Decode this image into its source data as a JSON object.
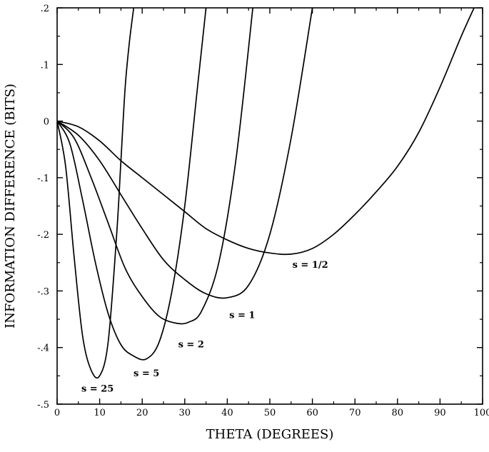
{
  "chart_data": {
    "type": "line",
    "xlabel": "THETA (DEGREES)",
    "ylabel": "INFORMATION DIFFERENCE (BITS)",
    "xlim": [
      0,
      100
    ],
    "ylim": [
      -0.5,
      0.2
    ],
    "grid": false,
    "x_ticks": [
      {
        "value": 0,
        "label": "0"
      },
      {
        "value": 10,
        "label": "10"
      },
      {
        "value": 20,
        "label": "20"
      },
      {
        "value": 30,
        "label": "30"
      },
      {
        "value": 40,
        "label": "40"
      },
      {
        "value": 50,
        "label": "50"
      },
      {
        "value": 60,
        "label": "60"
      },
      {
        "value": 70,
        "label": "70"
      },
      {
        "value": 80,
        "label": "80"
      },
      {
        "value": 90,
        "label": "90"
      },
      {
        "value": 100,
        "label": "100"
      }
    ],
    "y_ticks": [
      {
        "value": 0.2,
        "label": ".2"
      },
      {
        "value": 0.1,
        "label": ".1"
      },
      {
        "value": 0,
        "label": "0"
      },
      {
        "value": -0.1,
        "label": "-.1"
      },
      {
        "value": -0.2,
        "label": "-.2"
      },
      {
        "value": -0.3,
        "label": "-.3"
      },
      {
        "value": -0.4,
        "label": "-.4"
      },
      {
        "value": -0.5,
        "label": "-.5"
      }
    ],
    "series": [
      {
        "name": "s = 25",
        "label_at": {
          "x": 9.5,
          "y": -0.478
        },
        "x": [
          0,
          2,
          4,
          6,
          8,
          10,
          12,
          14,
          15,
          16,
          17,
          18
        ],
        "y": [
          0,
          -0.08,
          -0.24,
          -0.38,
          -0.44,
          -0.45,
          -0.39,
          -0.2,
          -0.07,
          0.06,
          0.14,
          0.2
        ]
      },
      {
        "name": "s = 5",
        "label_at": {
          "x": 21,
          "y": -0.451
        },
        "x": [
          0,
          3,
          6,
          9,
          12,
          15,
          18,
          21,
          24,
          27,
          30,
          33,
          35
        ],
        "y": [
          0,
          -0.04,
          -0.14,
          -0.25,
          -0.34,
          -0.395,
          -0.415,
          -0.42,
          -0.39,
          -0.3,
          -0.15,
          0.06,
          0.2
        ]
      },
      {
        "name": "s = 2",
        "label_at": {
          "x": 31.5,
          "y": -0.4
        },
        "x": [
          0,
          4,
          8,
          12,
          16,
          20,
          24,
          28,
          31,
          34,
          38,
          42,
          46
        ],
        "y": [
          0,
          -0.03,
          -0.1,
          -0.18,
          -0.26,
          -0.31,
          -0.345,
          -0.357,
          -0.355,
          -0.335,
          -0.25,
          -0.07,
          0.2
        ]
      },
      {
        "name": "s = 1",
        "label_at": {
          "x": 43.5,
          "y": -0.348
        },
        "x": [
          0,
          5,
          10,
          15,
          20,
          25,
          30,
          35,
          40,
          45,
          50,
          55,
          60
        ],
        "y": [
          0,
          -0.025,
          -0.07,
          -0.13,
          -0.19,
          -0.245,
          -0.28,
          -0.305,
          -0.312,
          -0.29,
          -0.2,
          -0.03,
          0.2
        ]
      },
      {
        "name": "s = 1/2",
        "label_at": {
          "x": 59.5,
          "y": -0.259
        },
        "x": [
          0,
          5,
          10,
          15,
          20,
          25,
          30,
          35,
          40,
          45,
          50,
          55,
          60,
          65,
          70,
          75,
          80,
          85,
          90,
          95,
          98
        ],
        "y": [
          0,
          -0.01,
          -0.035,
          -0.07,
          -0.1,
          -0.13,
          -0.16,
          -0.19,
          -0.21,
          -0.225,
          -0.233,
          -0.235,
          -0.225,
          -0.2,
          -0.165,
          -0.125,
          -0.08,
          -0.02,
          0.06,
          0.15,
          0.2
        ]
      }
    ]
  }
}
